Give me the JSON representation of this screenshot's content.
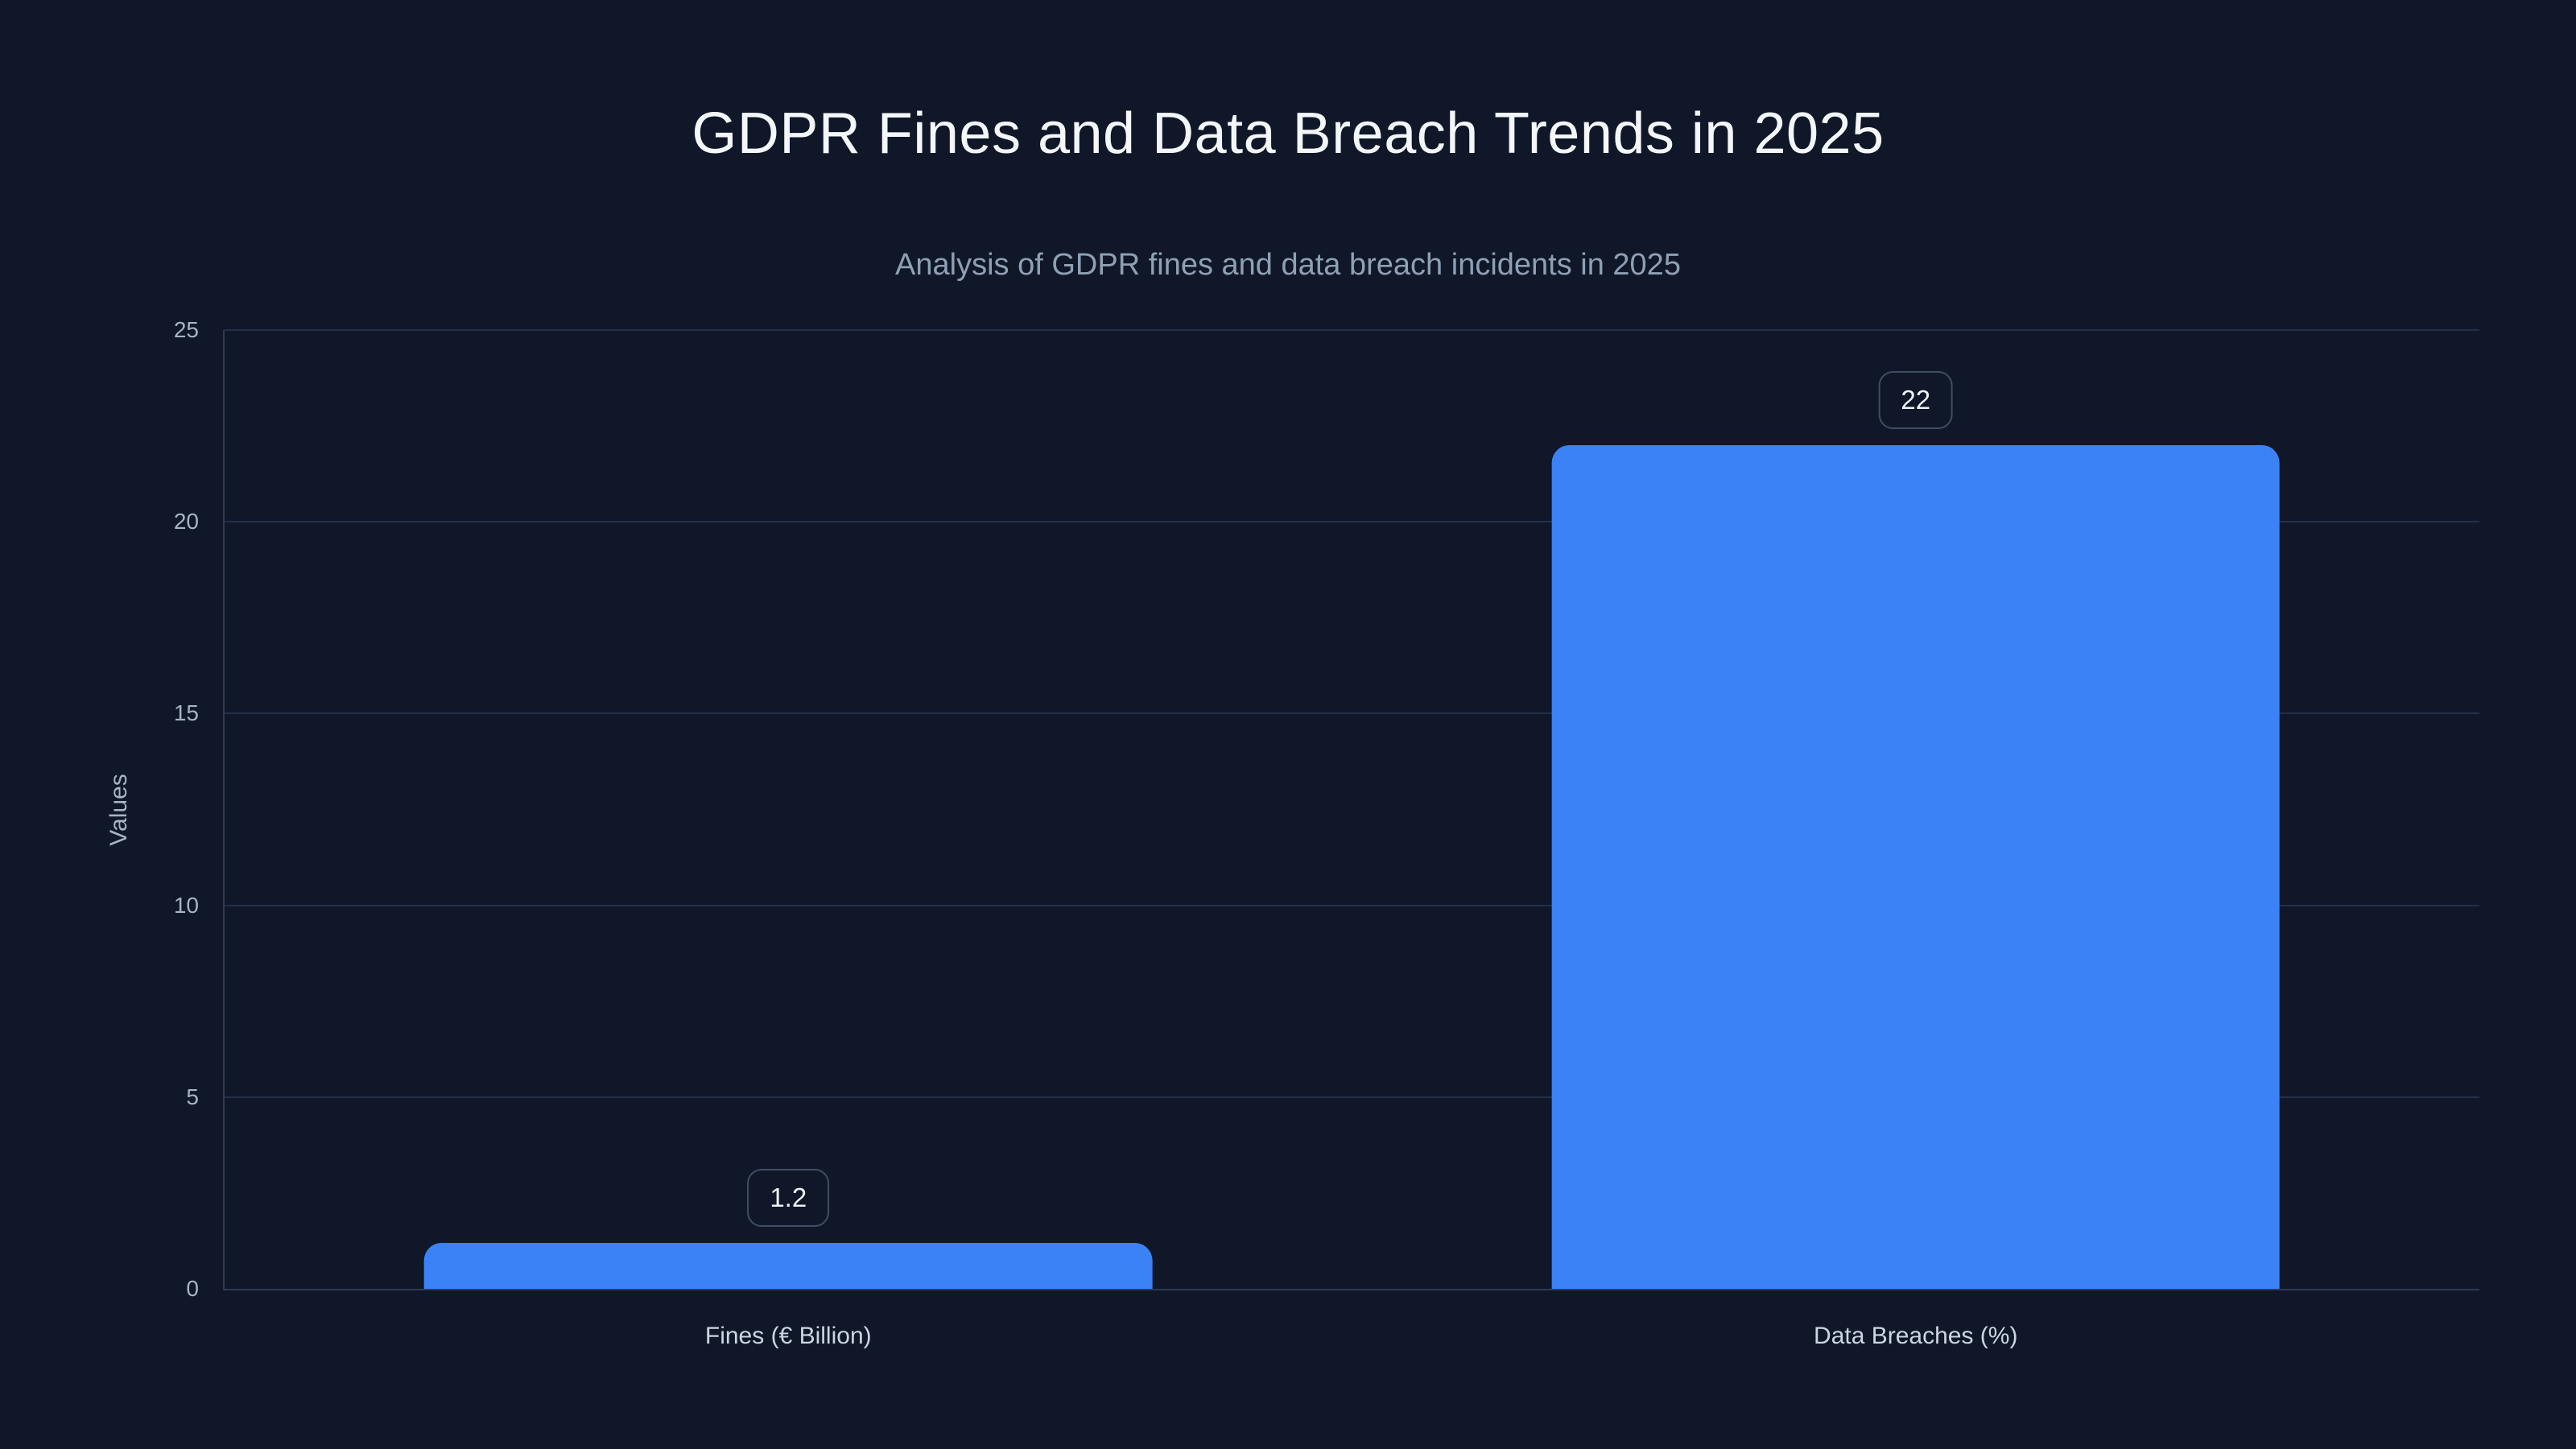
{
  "chart_data": {
    "type": "bar",
    "title": "GDPR Fines and Data Breach Trends in 2025",
    "subtitle": "Analysis of GDPR fines and data breach incidents in 2025",
    "categories": [
      "Fines (€ Billion)",
      "Data Breaches (%)"
    ],
    "values": [
      1.2,
      22
    ],
    "value_labels": [
      "1.2",
      "22"
    ],
    "xlabel": "",
    "ylabel": "Values",
    "ylim": [
      0,
      25
    ],
    "yticks": [
      0,
      5,
      10,
      15,
      20,
      25
    ],
    "grid": true,
    "legend": false,
    "bar_width_pct": 32.3
  },
  "colors": {
    "bg": "#0f1729",
    "bar": "#3b82f6",
    "grid": "#243047",
    "axis": "#2e3b55",
    "title": "#f4f7fa",
    "subtitle": "#8fa0b5",
    "tick": "#a8b4c6",
    "category": "#ccd5e0",
    "value_text": "#eef2f7",
    "value_border": "#414d63"
  }
}
